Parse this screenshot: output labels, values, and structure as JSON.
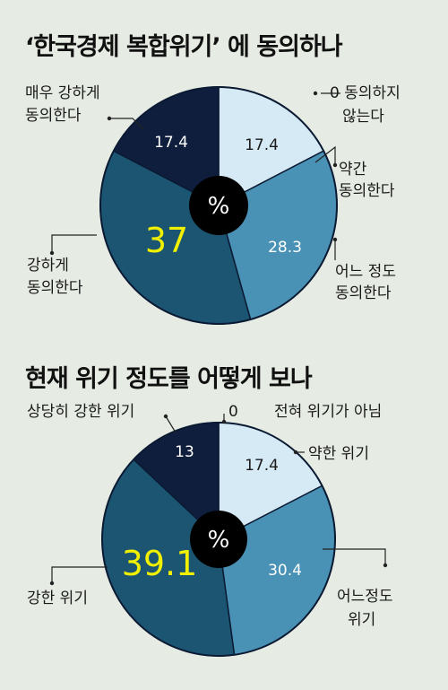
{
  "charts": [
    {
      "title": "‘한국경제 복합위기’ 에 동의하나",
      "center_label": "%"
    },
    {
      "title": "현재 위기 정도를 어떻게 보나",
      "center_label": "%"
    }
  ],
  "chart_data": [
    {
      "type": "pie",
      "title": "‘한국경제 복합위기’ 에 동의하나",
      "unit": "%",
      "slices": [
        {
          "label": [
            "0 동의하지",
            "않는다"
          ],
          "value": 0,
          "color": "#ffffff",
          "value_color": "#111111"
        },
        {
          "label": [
            "약간",
            "동의한다"
          ],
          "value": 17.4,
          "color": "#d6eaf5",
          "value_color": "#1a1a1a"
        },
        {
          "label": [
            "어느 정도",
            "동의한다"
          ],
          "value": 28.3,
          "color": "#4a92b5",
          "value_color": "#ffffff"
        },
        {
          "label": [
            "강하게",
            "동의한다"
          ],
          "value": 37,
          "color": "#1b5572",
          "value_color": "#f0f000"
        },
        {
          "label": [
            "매우 강하게",
            "동의한다"
          ],
          "value": 17.4,
          "color": "#0e1e3c",
          "value_color": "#ffffff"
        }
      ]
    },
    {
      "type": "pie",
      "title": "현재 위기 정도를 어떻게 보나",
      "unit": "%",
      "slices": [
        {
          "label": [
            "전혀 위기가 아님"
          ],
          "value": 0,
          "value_text": "0",
          "color": "#ffffff",
          "value_color": "#111111"
        },
        {
          "label": [
            "약한 위기"
          ],
          "value": 17.4,
          "color": "#d6eaf5",
          "value_color": "#1a1a1a"
        },
        {
          "label": [
            "어느정도",
            "위기"
          ],
          "value": 30.4,
          "color": "#4a92b5",
          "value_color": "#ffffff"
        },
        {
          "label": [
            "강한 위기"
          ],
          "value": 39.1,
          "color": "#1b5572",
          "value_color": "#f0f000"
        },
        {
          "label": [
            "상당히 강한 위기"
          ],
          "value": 13,
          "color": "#0e1e3c",
          "value_color": "#ffffff"
        }
      ]
    }
  ]
}
